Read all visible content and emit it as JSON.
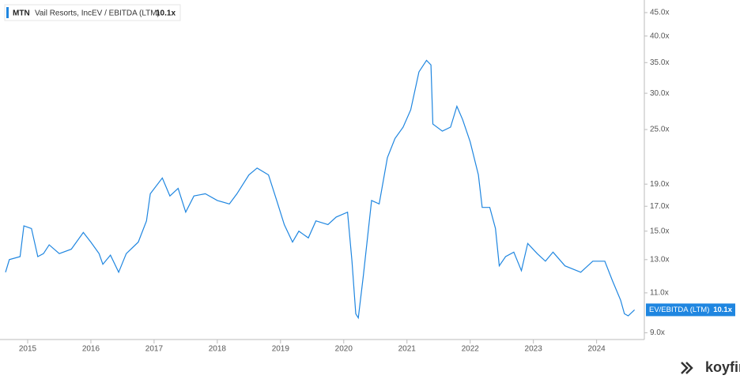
{
  "chart_data": {
    "type": "line",
    "ticker": "MTN",
    "company": "Vail Resorts, Inc.",
    "brand": "koyfin",
    "log_scale": true,
    "grid": false,
    "x": [
      2014.65,
      2014.71,
      2014.88,
      2014.94,
      2015.06,
      2015.16,
      2015.25,
      2015.34,
      2015.5,
      2015.69,
      2015.88,
      2016.0,
      2016.13,
      2016.19,
      2016.31,
      2016.44,
      2016.56,
      2016.75,
      2016.88,
      2016.94,
      2017.13,
      2017.25,
      2017.38,
      2017.5,
      2017.63,
      2017.81,
      2018.0,
      2018.19,
      2018.31,
      2018.5,
      2018.63,
      2018.81,
      2018.94,
      2019.06,
      2019.19,
      2019.29,
      2019.44,
      2019.56,
      2019.75,
      2019.88,
      2020.06,
      2020.13,
      2020.19,
      2020.23,
      2020.31,
      2020.44,
      2020.56,
      2020.69,
      2020.81,
      2020.94,
      2021.06,
      2021.19,
      2021.31,
      2021.38,
      2021.41,
      2021.56,
      2021.69,
      2021.79,
      2021.88,
      2022.0,
      2022.13,
      2022.19,
      2022.31,
      2022.4,
      2022.46,
      2022.56,
      2022.69,
      2022.81,
      2022.91,
      2023.06,
      2023.19,
      2023.31,
      2023.5,
      2023.75,
      2023.94,
      2024.13,
      2024.25,
      2024.38,
      2024.44,
      2024.5,
      2024.6
    ],
    "series": [
      {
        "name": "EV / EBITDA (LTM)",
        "color": "#1f86e0",
        "values": [
          12.2,
          13.0,
          13.2,
          15.4,
          15.2,
          13.2,
          13.4,
          14.0,
          13.4,
          13.7,
          14.9,
          14.2,
          13.4,
          12.7,
          13.3,
          12.2,
          13.4,
          14.2,
          15.8,
          18.1,
          19.6,
          17.9,
          18.6,
          16.5,
          17.9,
          18.1,
          17.5,
          17.2,
          18.1,
          19.9,
          20.6,
          19.9,
          17.5,
          15.5,
          14.2,
          15.0,
          14.5,
          15.8,
          15.5,
          16.1,
          16.5,
          12.9,
          9.9,
          9.7,
          12.0,
          17.5,
          17.2,
          21.7,
          23.9,
          25.3,
          27.6,
          33.4,
          35.4,
          34.6,
          25.7,
          24.8,
          25.3,
          28.1,
          26.3,
          23.5,
          19.9,
          16.9,
          16.9,
          15.2,
          12.6,
          13.2,
          13.5,
          12.3,
          14.1,
          13.4,
          12.9,
          13.5,
          12.6,
          12.2,
          12.9,
          12.9,
          11.7,
          10.6,
          9.9,
          9.8,
          10.1
        ]
      }
    ],
    "last_label": {
      "name": "EV/EBITDA (LTM)",
      "value": 10.1,
      "label": "10.1x"
    },
    "xlim": [
      2014.65,
      2024.63
    ],
    "xticks": [
      2015,
      2016,
      2017,
      2018,
      2019,
      2020,
      2021,
      2022,
      2023,
      2024
    ],
    "ylim": [
      8.7,
      47
    ],
    "yticks": [
      {
        "value": 9,
        "label": "9.0x"
      },
      {
        "value": 11,
        "label": "11.0x"
      },
      {
        "value": 13,
        "label": "13.0x"
      },
      {
        "value": 15,
        "label": "15.0x"
      },
      {
        "value": 17,
        "label": "17.0x"
      },
      {
        "value": 19,
        "label": "19.0x"
      },
      {
        "value": 25,
        "label": "25.0x"
      },
      {
        "value": 30,
        "label": "30.0x"
      },
      {
        "value": 35,
        "label": "35.0x"
      },
      {
        "value": 40,
        "label": "40.0x"
      },
      {
        "value": 45,
        "label": "45.0x"
      }
    ]
  }
}
